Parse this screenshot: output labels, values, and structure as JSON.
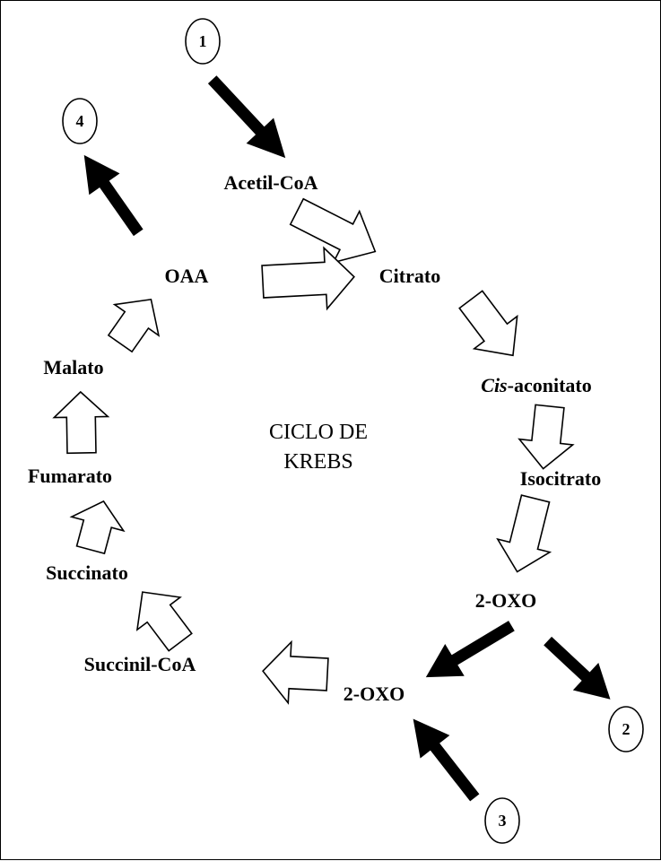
{
  "metabolites": {
    "acetyl_coa": "Acetil-CoA",
    "citrate": "Citrato",
    "cis_prefix": "Cis",
    "cis_suffix": "-aconitato",
    "isocitrate": "Isocitrato",
    "oxo_top": "2-OXO",
    "oxo_bottom": "2-OXO",
    "succinyl_coa": "Succinil-CoA",
    "succinate": "Succinato",
    "fumarate": "Fumarato",
    "malate": "Malato",
    "oaa": "OAA"
  },
  "center": {
    "line1": "CICLO DE",
    "line2": "KREBS"
  },
  "markers": [
    "1",
    "2",
    "3",
    "4"
  ]
}
